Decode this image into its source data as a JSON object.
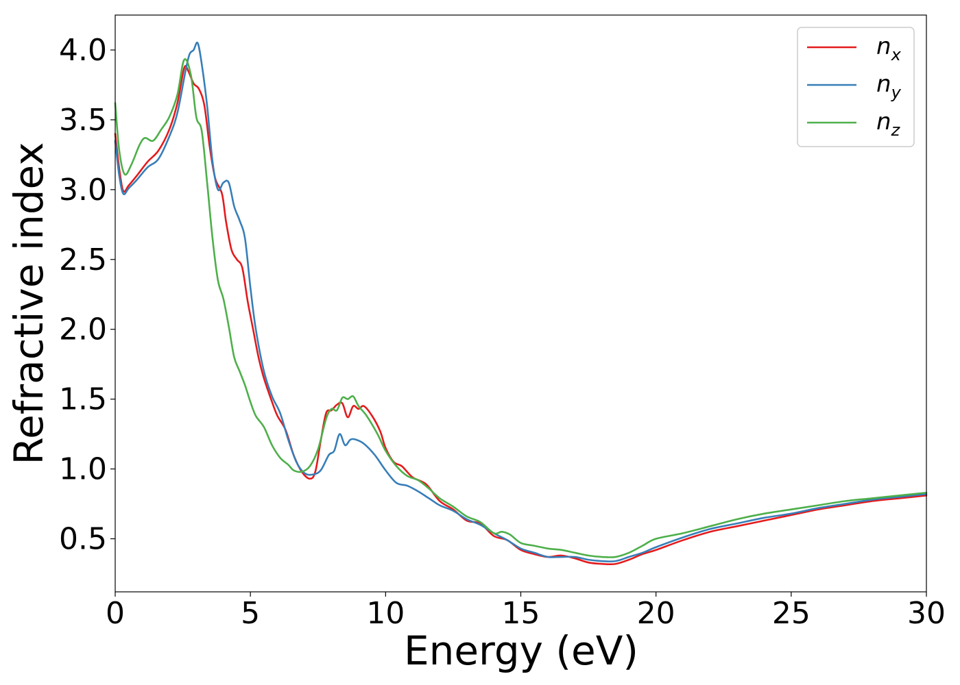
{
  "chart_data": {
    "type": "line",
    "title": "",
    "xlabel": "Energy (eV)",
    "ylabel": "Refractive index",
    "xlim": [
      0,
      30
    ],
    "ylim": [
      0.12,
      4.25
    ],
    "xticks": [
      0,
      5,
      10,
      15,
      20,
      25,
      30
    ],
    "xtick_labels": [
      "0",
      "5",
      "10",
      "15",
      "20",
      "25",
      "30"
    ],
    "yticks": [
      0.5,
      1.0,
      1.5,
      2.0,
      2.5,
      3.0,
      3.5,
      4.0
    ],
    "ytick_labels": [
      "0.5",
      "1.0",
      "1.5",
      "2.0",
      "2.5",
      "3.0",
      "3.5",
      "4.0"
    ],
    "grid": false,
    "legend_position": "top-right",
    "series": [
      {
        "name": "n_x",
        "legend_base": "n",
        "legend_sub": "x",
        "color": "#e41a1c",
        "points": [
          [
            0,
            3.4
          ],
          [
            0.15,
            3.15
          ],
          [
            0.3,
            2.99
          ],
          [
            0.5,
            3.03
          ],
          [
            0.8,
            3.1
          ],
          [
            1.2,
            3.2
          ],
          [
            1.6,
            3.28
          ],
          [
            2.0,
            3.43
          ],
          [
            2.3,
            3.62
          ],
          [
            2.55,
            3.87
          ],
          [
            2.7,
            3.85
          ],
          [
            2.9,
            3.76
          ],
          [
            3.1,
            3.72
          ],
          [
            3.3,
            3.6
          ],
          [
            3.5,
            3.3
          ],
          [
            3.7,
            3.08
          ],
          [
            3.95,
            2.97
          ],
          [
            4.1,
            2.77
          ],
          [
            4.3,
            2.57
          ],
          [
            4.5,
            2.5
          ],
          [
            4.7,
            2.44
          ],
          [
            4.9,
            2.2
          ],
          [
            5.1,
            2.0
          ],
          [
            5.3,
            1.8
          ],
          [
            5.5,
            1.65
          ],
          [
            5.8,
            1.48
          ],
          [
            6.0,
            1.38
          ],
          [
            6.3,
            1.28
          ],
          [
            6.6,
            1.1
          ],
          [
            6.9,
            0.98
          ],
          [
            7.2,
            0.93
          ],
          [
            7.4,
            0.98
          ],
          [
            7.6,
            1.2
          ],
          [
            7.8,
            1.4
          ],
          [
            8.0,
            1.42
          ],
          [
            8.2,
            1.46
          ],
          [
            8.4,
            1.47
          ],
          [
            8.6,
            1.37
          ],
          [
            8.8,
            1.45
          ],
          [
            9.0,
            1.43
          ],
          [
            9.2,
            1.45
          ],
          [
            9.5,
            1.38
          ],
          [
            9.8,
            1.27
          ],
          [
            10.0,
            1.15
          ],
          [
            10.3,
            1.05
          ],
          [
            10.6,
            1.02
          ],
          [
            11.0,
            0.94
          ],
          [
            11.5,
            0.89
          ],
          [
            12.0,
            0.77
          ],
          [
            12.5,
            0.71
          ],
          [
            13.0,
            0.63
          ],
          [
            13.5,
            0.61
          ],
          [
            14.0,
            0.52
          ],
          [
            14.5,
            0.49
          ],
          [
            15.0,
            0.42
          ],
          [
            15.5,
            0.39
          ],
          [
            16.0,
            0.37
          ],
          [
            16.5,
            0.38
          ],
          [
            17.0,
            0.36
          ],
          [
            17.5,
            0.33
          ],
          [
            18.0,
            0.32
          ],
          [
            18.5,
            0.32
          ],
          [
            19.0,
            0.35
          ],
          [
            19.5,
            0.39
          ],
          [
            20.0,
            0.42
          ],
          [
            21.0,
            0.49
          ],
          [
            22.0,
            0.55
          ],
          [
            23.0,
            0.59
          ],
          [
            24.0,
            0.63
          ],
          [
            25.0,
            0.67
          ],
          [
            26.0,
            0.71
          ],
          [
            27.0,
            0.74
          ],
          [
            28.0,
            0.77
          ],
          [
            29.0,
            0.79
          ],
          [
            30.0,
            0.81
          ]
        ]
      },
      {
        "name": "n_y",
        "legend_base": "n",
        "legend_sub": "y",
        "color": "#377eb8",
        "points": [
          [
            0,
            3.35
          ],
          [
            0.15,
            3.1
          ],
          [
            0.3,
            2.97
          ],
          [
            0.5,
            3.01
          ],
          [
            0.8,
            3.07
          ],
          [
            1.2,
            3.16
          ],
          [
            1.6,
            3.22
          ],
          [
            2.0,
            3.38
          ],
          [
            2.3,
            3.55
          ],
          [
            2.6,
            3.85
          ],
          [
            2.75,
            3.97
          ],
          [
            2.9,
            4.0
          ],
          [
            3.05,
            4.05
          ],
          [
            3.2,
            3.9
          ],
          [
            3.4,
            3.6
          ],
          [
            3.6,
            3.2
          ],
          [
            3.8,
            3.0
          ],
          [
            4.0,
            3.05
          ],
          [
            4.2,
            3.05
          ],
          [
            4.4,
            2.88
          ],
          [
            4.6,
            2.78
          ],
          [
            4.8,
            2.65
          ],
          [
            5.0,
            2.3
          ],
          [
            5.2,
            2.0
          ],
          [
            5.5,
            1.7
          ],
          [
            5.8,
            1.52
          ],
          [
            6.1,
            1.4
          ],
          [
            6.4,
            1.21
          ],
          [
            6.7,
            1.05
          ],
          [
            7.0,
            0.97
          ],
          [
            7.3,
            0.96
          ],
          [
            7.6,
            0.99
          ],
          [
            7.9,
            1.1
          ],
          [
            8.1,
            1.13
          ],
          [
            8.3,
            1.25
          ],
          [
            8.5,
            1.17
          ],
          [
            8.7,
            1.21
          ],
          [
            8.9,
            1.21
          ],
          [
            9.2,
            1.18
          ],
          [
            9.6,
            1.1
          ],
          [
            10.0,
            0.99
          ],
          [
            10.4,
            0.9
          ],
          [
            10.8,
            0.88
          ],
          [
            11.2,
            0.84
          ],
          [
            11.6,
            0.79
          ],
          [
            12.0,
            0.74
          ],
          [
            12.5,
            0.7
          ],
          [
            13.0,
            0.64
          ],
          [
            13.5,
            0.6
          ],
          [
            14.0,
            0.54
          ],
          [
            14.5,
            0.49
          ],
          [
            15.0,
            0.43
          ],
          [
            15.5,
            0.4
          ],
          [
            16.0,
            0.37
          ],
          [
            16.5,
            0.37
          ],
          [
            17.0,
            0.37
          ],
          [
            17.5,
            0.35
          ],
          [
            18.0,
            0.34
          ],
          [
            18.5,
            0.34
          ],
          [
            19.0,
            0.37
          ],
          [
            19.5,
            0.4
          ],
          [
            20.0,
            0.44
          ],
          [
            21.0,
            0.51
          ],
          [
            22.0,
            0.57
          ],
          [
            23.0,
            0.61
          ],
          [
            24.0,
            0.65
          ],
          [
            25.0,
            0.68
          ],
          [
            26.0,
            0.72
          ],
          [
            27.0,
            0.75
          ],
          [
            28.0,
            0.78
          ],
          [
            29.0,
            0.8
          ],
          [
            30.0,
            0.82
          ]
        ]
      },
      {
        "name": "n_z",
        "legend_base": "n",
        "legend_sub": "z",
        "color": "#4daf4a",
        "points": [
          [
            0,
            3.62
          ],
          [
            0.15,
            3.28
          ],
          [
            0.35,
            3.11
          ],
          [
            0.6,
            3.18
          ],
          [
            0.9,
            3.32
          ],
          [
            1.1,
            3.37
          ],
          [
            1.4,
            3.35
          ],
          [
            1.7,
            3.43
          ],
          [
            2.0,
            3.52
          ],
          [
            2.3,
            3.68
          ],
          [
            2.55,
            3.93
          ],
          [
            2.8,
            3.82
          ],
          [
            3.0,
            3.52
          ],
          [
            3.2,
            3.42
          ],
          [
            3.4,
            3.05
          ],
          [
            3.6,
            2.65
          ],
          [
            3.8,
            2.35
          ],
          [
            4.0,
            2.22
          ],
          [
            4.2,
            2.02
          ],
          [
            4.4,
            1.8
          ],
          [
            4.6,
            1.7
          ],
          [
            4.8,
            1.6
          ],
          [
            5.0,
            1.48
          ],
          [
            5.2,
            1.38
          ],
          [
            5.5,
            1.3
          ],
          [
            5.8,
            1.17
          ],
          [
            6.1,
            1.08
          ],
          [
            6.4,
            1.03
          ],
          [
            6.6,
            0.99
          ],
          [
            6.9,
            0.98
          ],
          [
            7.2,
            1.02
          ],
          [
            7.5,
            1.14
          ],
          [
            7.8,
            1.36
          ],
          [
            8.0,
            1.43
          ],
          [
            8.2,
            1.42
          ],
          [
            8.4,
            1.51
          ],
          [
            8.6,
            1.5
          ],
          [
            8.8,
            1.52
          ],
          [
            9.0,
            1.45
          ],
          [
            9.3,
            1.38
          ],
          [
            9.7,
            1.25
          ],
          [
            10.0,
            1.13
          ],
          [
            10.4,
            1.02
          ],
          [
            10.8,
            0.95
          ],
          [
            11.2,
            0.92
          ],
          [
            11.6,
            0.86
          ],
          [
            12.0,
            0.79
          ],
          [
            12.5,
            0.73
          ],
          [
            13.0,
            0.66
          ],
          [
            13.5,
            0.62
          ],
          [
            14.0,
            0.54
          ],
          [
            14.3,
            0.55
          ],
          [
            14.6,
            0.53
          ],
          [
            15.0,
            0.47
          ],
          [
            15.5,
            0.45
          ],
          [
            16.0,
            0.43
          ],
          [
            16.5,
            0.42
          ],
          [
            17.0,
            0.4
          ],
          [
            17.5,
            0.38
          ],
          [
            18.0,
            0.37
          ],
          [
            18.5,
            0.37
          ],
          [
            19.0,
            0.4
          ],
          [
            19.5,
            0.45
          ],
          [
            20.0,
            0.5
          ],
          [
            21.0,
            0.54
          ],
          [
            22.0,
            0.59
          ],
          [
            23.0,
            0.64
          ],
          [
            24.0,
            0.68
          ],
          [
            25.0,
            0.71
          ],
          [
            26.0,
            0.74
          ],
          [
            27.0,
            0.77
          ],
          [
            28.0,
            0.79
          ],
          [
            29.0,
            0.81
          ],
          [
            30.0,
            0.83
          ]
        ]
      }
    ]
  }
}
